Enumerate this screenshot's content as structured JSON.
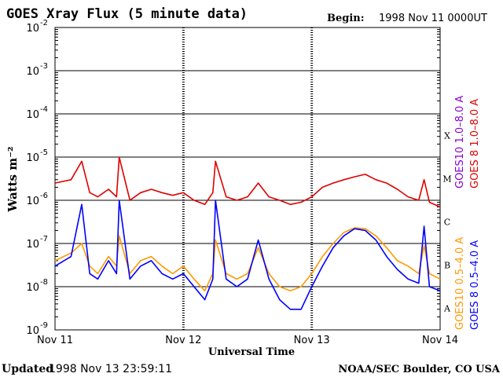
{
  "header": {
    "title": "GOES Xray Flux (5 minute data)",
    "begin_label": "Begin:",
    "begin_value": "1998 Nov 11 0000UT"
  },
  "footer": {
    "updated_label": "Updated",
    "updated_value": "1998 Nov 13 23:59:11",
    "credit": "NOAA/SEC Boulder, CO USA"
  },
  "colors": {
    "red": "#e00000",
    "blue": "#0000ff",
    "orange": "#ff9900",
    "purple": "#8800cc",
    "grid": "#000000"
  },
  "chart_data": {
    "type": "line",
    "title": "GOES Xray Flux (5 minute data)",
    "xlabel": "Universal Time",
    "ylabel": "Watts m⁻²",
    "y_scale": "log",
    "ylim": [
      1e-09,
      0.01
    ],
    "xlim": [
      "1998-11-11 00:00",
      "1998-11-14 00:00"
    ],
    "x_ticks": [
      "Nov 11",
      "Nov 12",
      "Nov 13",
      "Nov 14"
    ],
    "y_ticks": [
      {
        "base": "10",
        "exp": "-2"
      },
      {
        "base": "10",
        "exp": "-3"
      },
      {
        "base": "10",
        "exp": "-4"
      },
      {
        "base": "10",
        "exp": "-5"
      },
      {
        "base": "10",
        "exp": "-6"
      },
      {
        "base": "10",
        "exp": "-7"
      },
      {
        "base": "10",
        "exp": "-8"
      },
      {
        "base": "10",
        "exp": "-9"
      }
    ],
    "flare_classes": [
      "X",
      "M",
      "C",
      "B",
      "A"
    ],
    "legend": {
      "right_top": [
        "GOES 8  1.0–8.0 A",
        "GOES10 1.0–8.0 A"
      ],
      "right_bottom": [
        "GOES 8  0.5–4.0 A",
        "GOES10 0.5–4.0 A"
      ]
    },
    "grid": true,
    "series": [
      {
        "name": "GOES 8  1.0–8.0 A",
        "color": "#e00000",
        "x": [
          "1998-11-11 00:00",
          "1998-11-11 03:00",
          "1998-11-11 05:00",
          "1998-11-11 06:30",
          "1998-11-11 08:00",
          "1998-11-11 10:00",
          "1998-11-11 11:30",
          "1998-11-11 12:00",
          "1998-11-11 14:00",
          "1998-11-11 16:00",
          "1998-11-11 18:00",
          "1998-11-11 20:00",
          "1998-11-11 22:00",
          "1998-11-12 00:00",
          "1998-11-12 02:00",
          "1998-11-12 04:00",
          "1998-11-12 05:30",
          "1998-11-12 06:00",
          "1998-11-12 08:00",
          "1998-11-12 10:00",
          "1998-11-12 12:00",
          "1998-11-12 14:00",
          "1998-11-12 16:00",
          "1998-11-12 18:00",
          "1998-11-12 20:00",
          "1998-11-12 22:00",
          "1998-11-13 00:00",
          "1998-11-13 02:00",
          "1998-11-13 04:00",
          "1998-11-13 06:00",
          "1998-11-13 08:00",
          "1998-11-13 10:00",
          "1998-11-13 12:00",
          "1998-11-13 14:00",
          "1998-11-13 16:00",
          "1998-11-13 18:00",
          "1998-11-13 20:00",
          "1998-11-13 21:00",
          "1998-11-13 22:00",
          "1998-11-14 00:00"
        ],
        "values": [
          2.5e-06,
          3e-06,
          8e-06,
          1.5e-06,
          1.2e-06,
          1.8e-06,
          1.2e-06,
          1e-05,
          1e-06,
          1.5e-06,
          1.8e-06,
          1.5e-06,
          1.3e-06,
          1.5e-06,
          1e-06,
          8e-07,
          1.5e-06,
          8e-06,
          1.2e-06,
          1e-06,
          1.2e-06,
          2.5e-06,
          1.2e-06,
          1e-06,
          8e-07,
          9e-07,
          1.2e-06,
          2e-06,
          2.5e-06,
          3e-06,
          3.5e-06,
          4e-06,
          3e-06,
          2.5e-06,
          1.8e-06,
          1.2e-06,
          1e-06,
          3e-06,
          9e-07,
          7e-07
        ]
      },
      {
        "name": "GOES10 0.5–4.0 A",
        "color": "#ff9900",
        "x": [
          "1998-11-11 00:00",
          "1998-11-11 03:00",
          "1998-11-11 05:00",
          "1998-11-11 06:30",
          "1998-11-11 08:00",
          "1998-11-11 10:00",
          "1998-11-11 11:30",
          "1998-11-11 12:00",
          "1998-11-11 14:00",
          "1998-11-11 16:00",
          "1998-11-11 18:00",
          "1998-11-11 20:00",
          "1998-11-11 22:00",
          "1998-11-12 00:00",
          "1998-11-12 02:00",
          "1998-11-12 04:00",
          "1998-11-12 05:30",
          "1998-11-12 06:00",
          "1998-11-12 08:00",
          "1998-11-12 10:00",
          "1998-11-12 12:00",
          "1998-11-12 14:00",
          "1998-11-12 16:00",
          "1998-11-12 18:00",
          "1998-11-12 20:00",
          "1998-11-12 22:00",
          "1998-11-13 00:00",
          "1998-11-13 02:00",
          "1998-11-13 04:00",
          "1998-11-13 06:00",
          "1998-11-13 08:00",
          "1998-11-13 10:00",
          "1998-11-13 12:00",
          "1998-11-13 14:00",
          "1998-11-13 16:00",
          "1998-11-13 18:00",
          "1998-11-13 20:00",
          "1998-11-13 21:00",
          "1998-11-13 22:00",
          "1998-11-14 00:00"
        ],
        "values": [
          4e-08,
          6e-08,
          1e-07,
          3e-08,
          2e-08,
          5e-08,
          3e-08,
          1.5e-07,
          2e-08,
          4e-08,
          5e-08,
          3e-08,
          2e-08,
          3e-08,
          1.5e-08,
          8e-09,
          2e-08,
          1.2e-07,
          2e-08,
          1.5e-08,
          2e-08,
          8e-08,
          2e-08,
          1e-08,
          8e-09,
          1e-08,
          2e-08,
          5e-08,
          1e-07,
          1.8e-07,
          2.3e-07,
          2.2e-07,
          1.5e-07,
          8e-08,
          4e-08,
          3e-08,
          2e-08,
          9e-08,
          2e-08,
          1.5e-08
        ]
      },
      {
        "name": "GOES 8  0.5–4.0 A",
        "color": "#0000ff",
        "x": [
          "1998-11-11 00:00",
          "1998-11-11 03:00",
          "1998-11-11 05:00",
          "1998-11-11 06:30",
          "1998-11-11 08:00",
          "1998-11-11 10:00",
          "1998-11-11 11:30",
          "1998-11-11 12:00",
          "1998-11-11 14:00",
          "1998-11-11 16:00",
          "1998-11-11 18:00",
          "1998-11-11 20:00",
          "1998-11-11 22:00",
          "1998-11-12 00:00",
          "1998-11-12 02:00",
          "1998-11-12 04:00",
          "1998-11-12 05:30",
          "1998-11-12 06:00",
          "1998-11-12 08:00",
          "1998-11-12 10:00",
          "1998-11-12 12:00",
          "1998-11-12 14:00",
          "1998-11-12 16:00",
          "1998-11-12 18:00",
          "1998-11-12 20:00",
          "1998-11-12 22:00",
          "1998-11-13 00:00",
          "1998-11-13 02:00",
          "1998-11-13 04:00",
          "1998-11-13 06:00",
          "1998-11-13 08:00",
          "1998-11-13 10:00",
          "1998-11-13 12:00",
          "1998-11-13 14:00",
          "1998-11-13 16:00",
          "1998-11-13 18:00",
          "1998-11-13 20:00",
          "1998-11-13 21:00",
          "1998-11-13 22:00",
          "1998-11-14 00:00"
        ],
        "values": [
          3e-08,
          5e-08,
          8e-07,
          2e-08,
          1.5e-08,
          4e-08,
          2e-08,
          1e-06,
          1.5e-08,
          3e-08,
          4e-08,
          2e-08,
          1.5e-08,
          2e-08,
          1e-08,
          5e-09,
          1.5e-08,
          1e-06,
          1.5e-08,
          1e-08,
          1.5e-08,
          1.2e-07,
          1.5e-08,
          5e-09,
          3e-09,
          3e-09,
          1e-08,
          3e-08,
          8e-08,
          1.5e-07,
          2.2e-07,
          2e-07,
          1.2e-07,
          5e-08,
          2.5e-08,
          1.5e-08,
          1.2e-08,
          2.5e-07,
          1e-08,
          8e-09
        ]
      }
    ]
  }
}
